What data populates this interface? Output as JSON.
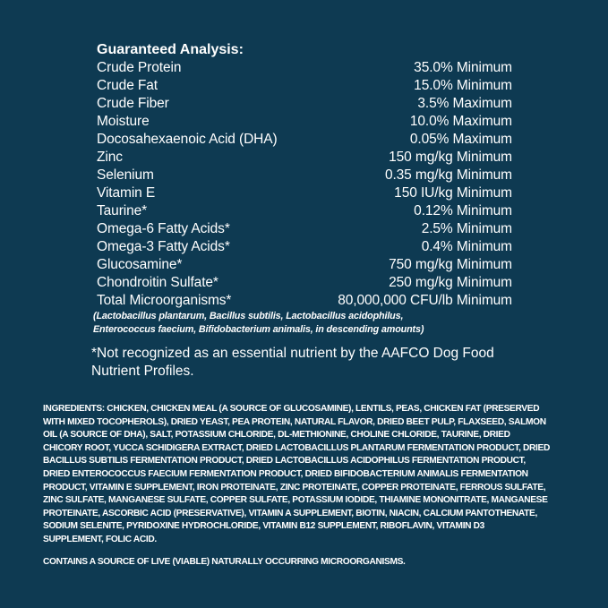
{
  "colors": {
    "background": "#0e3a52",
    "text": "#ffffff"
  },
  "analysis": {
    "title": "Guaranteed Analysis:",
    "rows": [
      {
        "name": "Crude Protein",
        "value": "35.0% Minimum"
      },
      {
        "name": "Crude Fat",
        "value": "15.0% Minimum"
      },
      {
        "name": "Crude Fiber",
        "value": "3.5% Maximum"
      },
      {
        "name": "Moisture",
        "value": "10.0% Maximum"
      },
      {
        "name": "Docosahexaenoic Acid (DHA)",
        "value": "0.05% Maximum"
      },
      {
        "name": "Zinc",
        "value": "150 mg/kg Minimum"
      },
      {
        "name": "Selenium",
        "value": "0.35 mg/kg Minimum"
      },
      {
        "name": "Vitamin E",
        "value": "150 IU/kg Minimum"
      },
      {
        "name": "Taurine*",
        "value": "0.12% Minimum"
      },
      {
        "name": "Omega-6 Fatty Acids*",
        "value": "2.5% Minimum"
      },
      {
        "name": "Omega-3 Fatty Acids*",
        "value": "0.4% Minimum"
      },
      {
        "name": "Glucosamine*",
        "value": "750 mg/kg Minimum"
      },
      {
        "name": "Chondroitin Sulfate*",
        "value": "250 mg/kg Minimum"
      },
      {
        "name": "Total Microorganisms*",
        "value": "80,000,000 CFU/lb Minimum"
      }
    ],
    "note_lines": [
      "(Lactobacillus plantarum, Bacillus subtilis, Lactobacillus acidophilus,",
      "Enterococcus faecium, Bifidobacterium animalis, in descending amounts)"
    ]
  },
  "aafco_note": "*Not recognized as an essential nutrient by the AAFCO Dog Food Nutrient Profiles.",
  "ingredients": {
    "label": "INGREDIENTS:",
    "lines": [
      " CHICKEN, CHICKEN MEAL (A SOURCE OF GLUCOSAMINE), LENTILS, PEAS, CHICKEN FAT (PRESERVED",
      "WITH MIXED TOCOPHEROLS), DRIED YEAST, PEA PROTEIN, NATURAL FLAVOR, DRIED BEET PULP, FLAXSEED, SALMON",
      "OIL (A SOURCE OF DHA), SALT, POTASSIUM CHLORIDE, DL-METHIONINE, CHOLINE CHLORIDE, TAURINE, DRIED",
      "CHICORY ROOT, YUCCA SCHIDIGERA EXTRACT, DRIED LACTOBACILLUS PLANTARUM FERMENTATION PRODUCT, DRIED",
      "BACILLUS SUBTILIS FERMENTATION PRODUCT, DRIED LACTOBACILLUS ACIDOPHILUS FERMENTATION PRODUCT,",
      "DRIED ENTEROCOCCUS FAECIUM FERMENTATION PRODUCT, DRIED BIFIDOBACTERIUM ANIMALIS FERMENTATION",
      "PRODUCT, VITAMIN E SUPPLEMENT, IRON PROTEINATE, ZINC PROTEINATE, COPPER PROTEINATE, FERROUS SULFATE,",
      "ZINC SULFATE, MANGANESE SULFATE, COPPER SULFATE, POTASSIUM IODIDE, THIAMINE MONONITRATE, MANGANESE",
      "PROTEINATE, ASCORBIC ACID (PRESERVATIVE), VITAMIN A SUPPLEMENT, BIOTIN, NIACIN, CALCIUM PANTOTHENATE,",
      "SODIUM SELENITE, PYRIDOXINE HYDROCHLORIDE, VITAMIN B12 SUPPLEMENT, RIBOFLAVIN, VITAMIN D3",
      "SUPPLEMENT, FOLIC ACID."
    ]
  },
  "contains": "CONTAINS A SOURCE OF LIVE (VIABLE) NATURALLY OCCURRING MICROORGANISMS."
}
